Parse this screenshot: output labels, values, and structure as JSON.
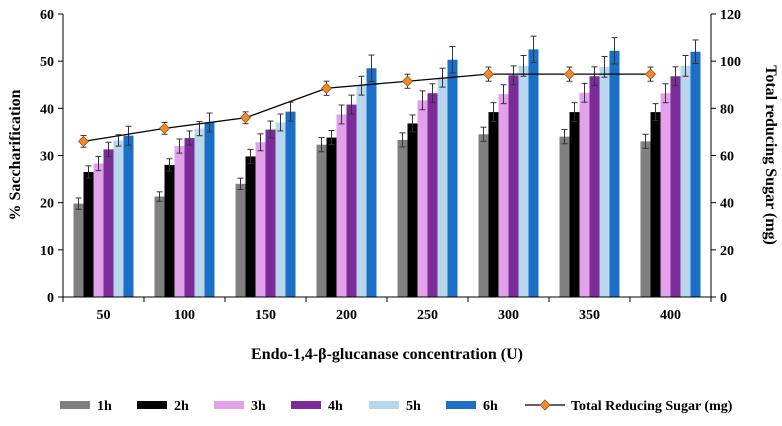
{
  "chart_data": {
    "type": "bar",
    "xlabel": "Endo-1,4-β-glucanase concentration (U)",
    "ylabel": "% Saccharification",
    "y2label": "Total reducing Sugar (mg)",
    "categories": [
      "50",
      "100",
      "150",
      "200",
      "250",
      "300",
      "350",
      "400"
    ],
    "ylim": [
      0,
      60
    ],
    "yticks": [
      0,
      10,
      20,
      30,
      40,
      50,
      60
    ],
    "y2lim": [
      0,
      120
    ],
    "y2ticks": [
      0,
      20,
      40,
      60,
      80,
      100,
      120
    ],
    "series": [
      {
        "name": "1h",
        "color": "#808080",
        "values": [
          19.8,
          21.3,
          24.0,
          32.3,
          33.3,
          34.5,
          34.0,
          33.0
        ],
        "errors": [
          1.2,
          1.0,
          1.2,
          1.5,
          1.5,
          1.5,
          1.5,
          1.5
        ]
      },
      {
        "name": "2h",
        "color": "#000000",
        "values": [
          26.5,
          28.0,
          29.8,
          33.8,
          36.8,
          39.2,
          39.2,
          39.2
        ],
        "errors": [
          1.3,
          1.3,
          1.5,
          1.5,
          1.8,
          2.0,
          2.0,
          1.8
        ]
      },
      {
        "name": "3h",
        "color": "#e3a1ec",
        "values": [
          28.3,
          32.0,
          32.8,
          38.7,
          41.7,
          43.0,
          43.3,
          43.2
        ],
        "errors": [
          1.5,
          1.5,
          1.8,
          2.0,
          2.0,
          2.0,
          2.0,
          2.0
        ]
      },
      {
        "name": "4h",
        "color": "#7b2c98",
        "values": [
          31.3,
          33.7,
          35.5,
          40.8,
          43.2,
          47.0,
          46.8,
          46.8
        ],
        "errors": [
          1.5,
          1.5,
          1.8,
          2.0,
          2.0,
          2.0,
          2.0,
          2.0
        ]
      },
      {
        "name": "5h",
        "color": "#b8d6ed",
        "values": [
          33.2,
          35.7,
          37.0,
          44.8,
          46.5,
          49.0,
          48.8,
          49.0
        ],
        "errors": [
          1.2,
          1.5,
          1.8,
          2.0,
          2.0,
          2.2,
          2.2,
          2.2
        ]
      },
      {
        "name": "6h",
        "color": "#1c6fc7",
        "values": [
          34.2,
          37.0,
          39.3,
          48.5,
          50.3,
          52.5,
          52.2,
          52.0
        ],
        "errors": [
          2.0,
          2.0,
          2.0,
          2.8,
          2.8,
          2.8,
          2.8,
          2.5
        ]
      }
    ],
    "line_series": {
      "name": "Total Reducing Sugar (mg)",
      "axis": "right",
      "color": "#000000",
      "marker_color": "#f08a2a",
      "values": [
        66.0,
        71.5,
        76.0,
        88.5,
        91.5,
        94.5,
        94.5,
        94.5
      ],
      "errors": [
        2.5,
        2.5,
        2.5,
        3.0,
        3.0,
        3.0,
        3.0,
        3.0
      ]
    },
    "legend_position": "bottom"
  }
}
